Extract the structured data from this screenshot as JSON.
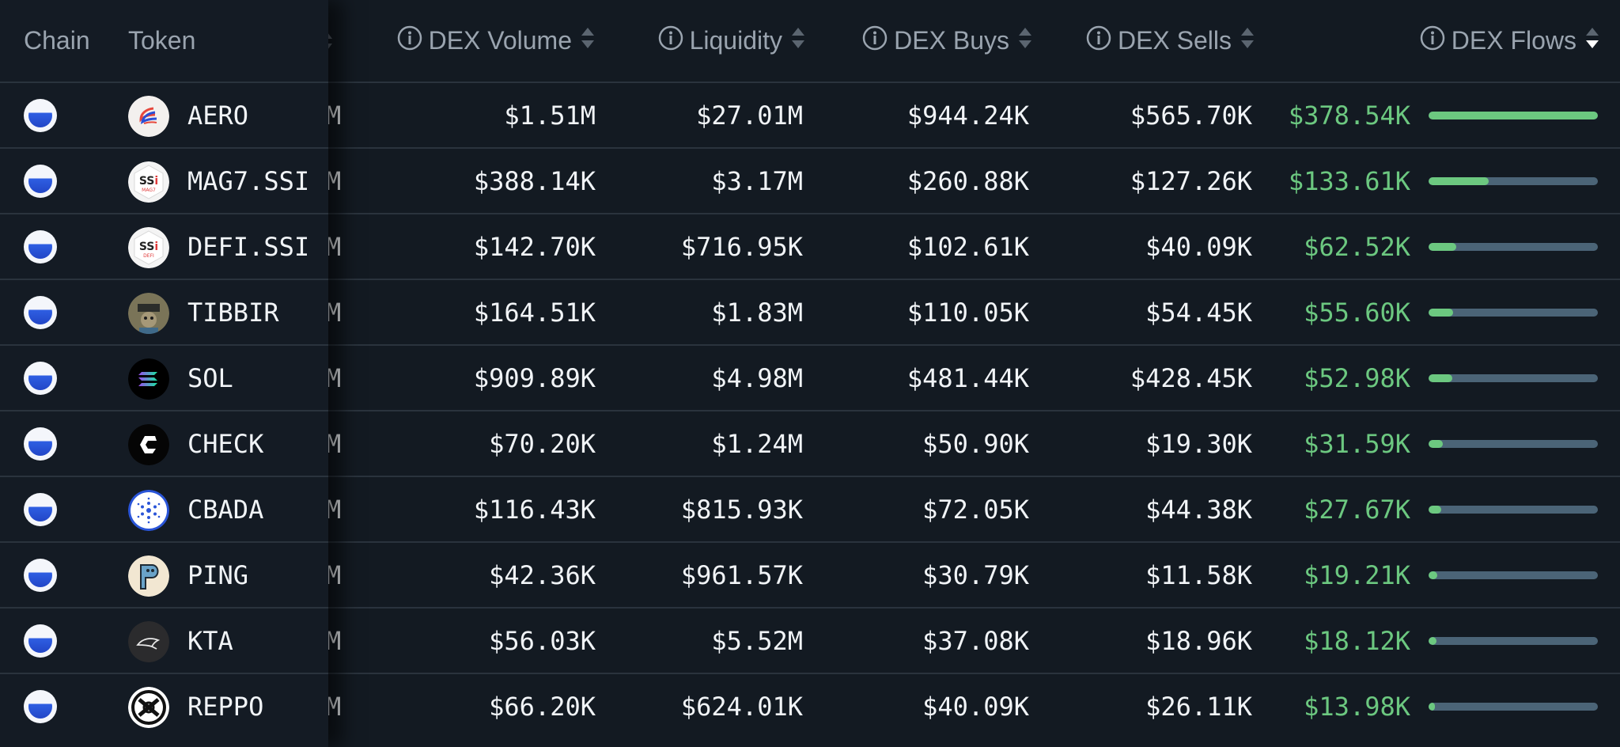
{
  "header": {
    "chain": "Chain",
    "token": "Token",
    "dex_volume": "DEX Volume",
    "liquidity": "Liquidity",
    "dex_buys": "DEX Buys",
    "dex_sells": "DEX Sells",
    "dex_flows": "DEX Flows"
  },
  "colors": {
    "positive": "#6cc880",
    "bar_track": "#4b6477",
    "background": "#131a22"
  },
  "clipped_column_text": "M",
  "rows": [
    {
      "token": "AERO",
      "logo": "aero-logo",
      "volume": "$1.51M",
      "liquidity": "$27.01M",
      "buys": "$944.24K",
      "sells": "$565.70K",
      "flows": "$378.54K",
      "flow_fraction": 1.0
    },
    {
      "token": "MAG7.SSI",
      "logo": "ssi-mag7-logo",
      "logo_text": "SSi",
      "logo_sub": "MAG7",
      "volume": "$388.14K",
      "liquidity": "$3.17M",
      "buys": "$260.88K",
      "sells": "$127.26K",
      "flows": "$133.61K",
      "flow_fraction": 0.353
    },
    {
      "token": "DEFI.SSI",
      "logo": "ssi-defi-logo",
      "logo_text": "SSi",
      "logo_sub": "DEFI",
      "volume": "$142.70K",
      "liquidity": "$716.95K",
      "buys": "$102.61K",
      "sells": "$40.09K",
      "flows": "$62.52K",
      "flow_fraction": 0.165
    },
    {
      "token": "TIBBIR",
      "logo": "tibbir-logo",
      "volume": "$164.51K",
      "liquidity": "$1.83M",
      "buys": "$110.05K",
      "sells": "$54.45K",
      "flows": "$55.60K",
      "flow_fraction": 0.147
    },
    {
      "token": "SOL",
      "logo": "sol-logo",
      "volume": "$909.89K",
      "liquidity": "$4.98M",
      "buys": "$481.44K",
      "sells": "$428.45K",
      "flows": "$52.98K",
      "flow_fraction": 0.14
    },
    {
      "token": "CHECK",
      "logo": "check-logo",
      "volume": "$70.20K",
      "liquidity": "$1.24M",
      "buys": "$50.90K",
      "sells": "$19.30K",
      "flows": "$31.59K",
      "flow_fraction": 0.083
    },
    {
      "token": "CBADA",
      "logo": "cbada-logo",
      "volume": "$116.43K",
      "liquidity": "$815.93K",
      "buys": "$72.05K",
      "sells": "$44.38K",
      "flows": "$27.67K",
      "flow_fraction": 0.073
    },
    {
      "token": "PING",
      "logo": "ping-logo",
      "volume": "$42.36K",
      "liquidity": "$961.57K",
      "buys": "$30.79K",
      "sells": "$11.58K",
      "flows": "$19.21K",
      "flow_fraction": 0.051
    },
    {
      "token": "KTA",
      "logo": "kta-logo",
      "volume": "$56.03K",
      "liquidity": "$5.52M",
      "buys": "$37.08K",
      "sells": "$18.96K",
      "flows": "$18.12K",
      "flow_fraction": 0.048
    },
    {
      "token": "REPPO",
      "logo": "reppo-logo",
      "volume": "$66.20K",
      "liquidity": "$624.01K",
      "buys": "$40.09K",
      "sells": "$26.11K",
      "flows": "$13.98K",
      "flow_fraction": 0.037
    }
  ]
}
